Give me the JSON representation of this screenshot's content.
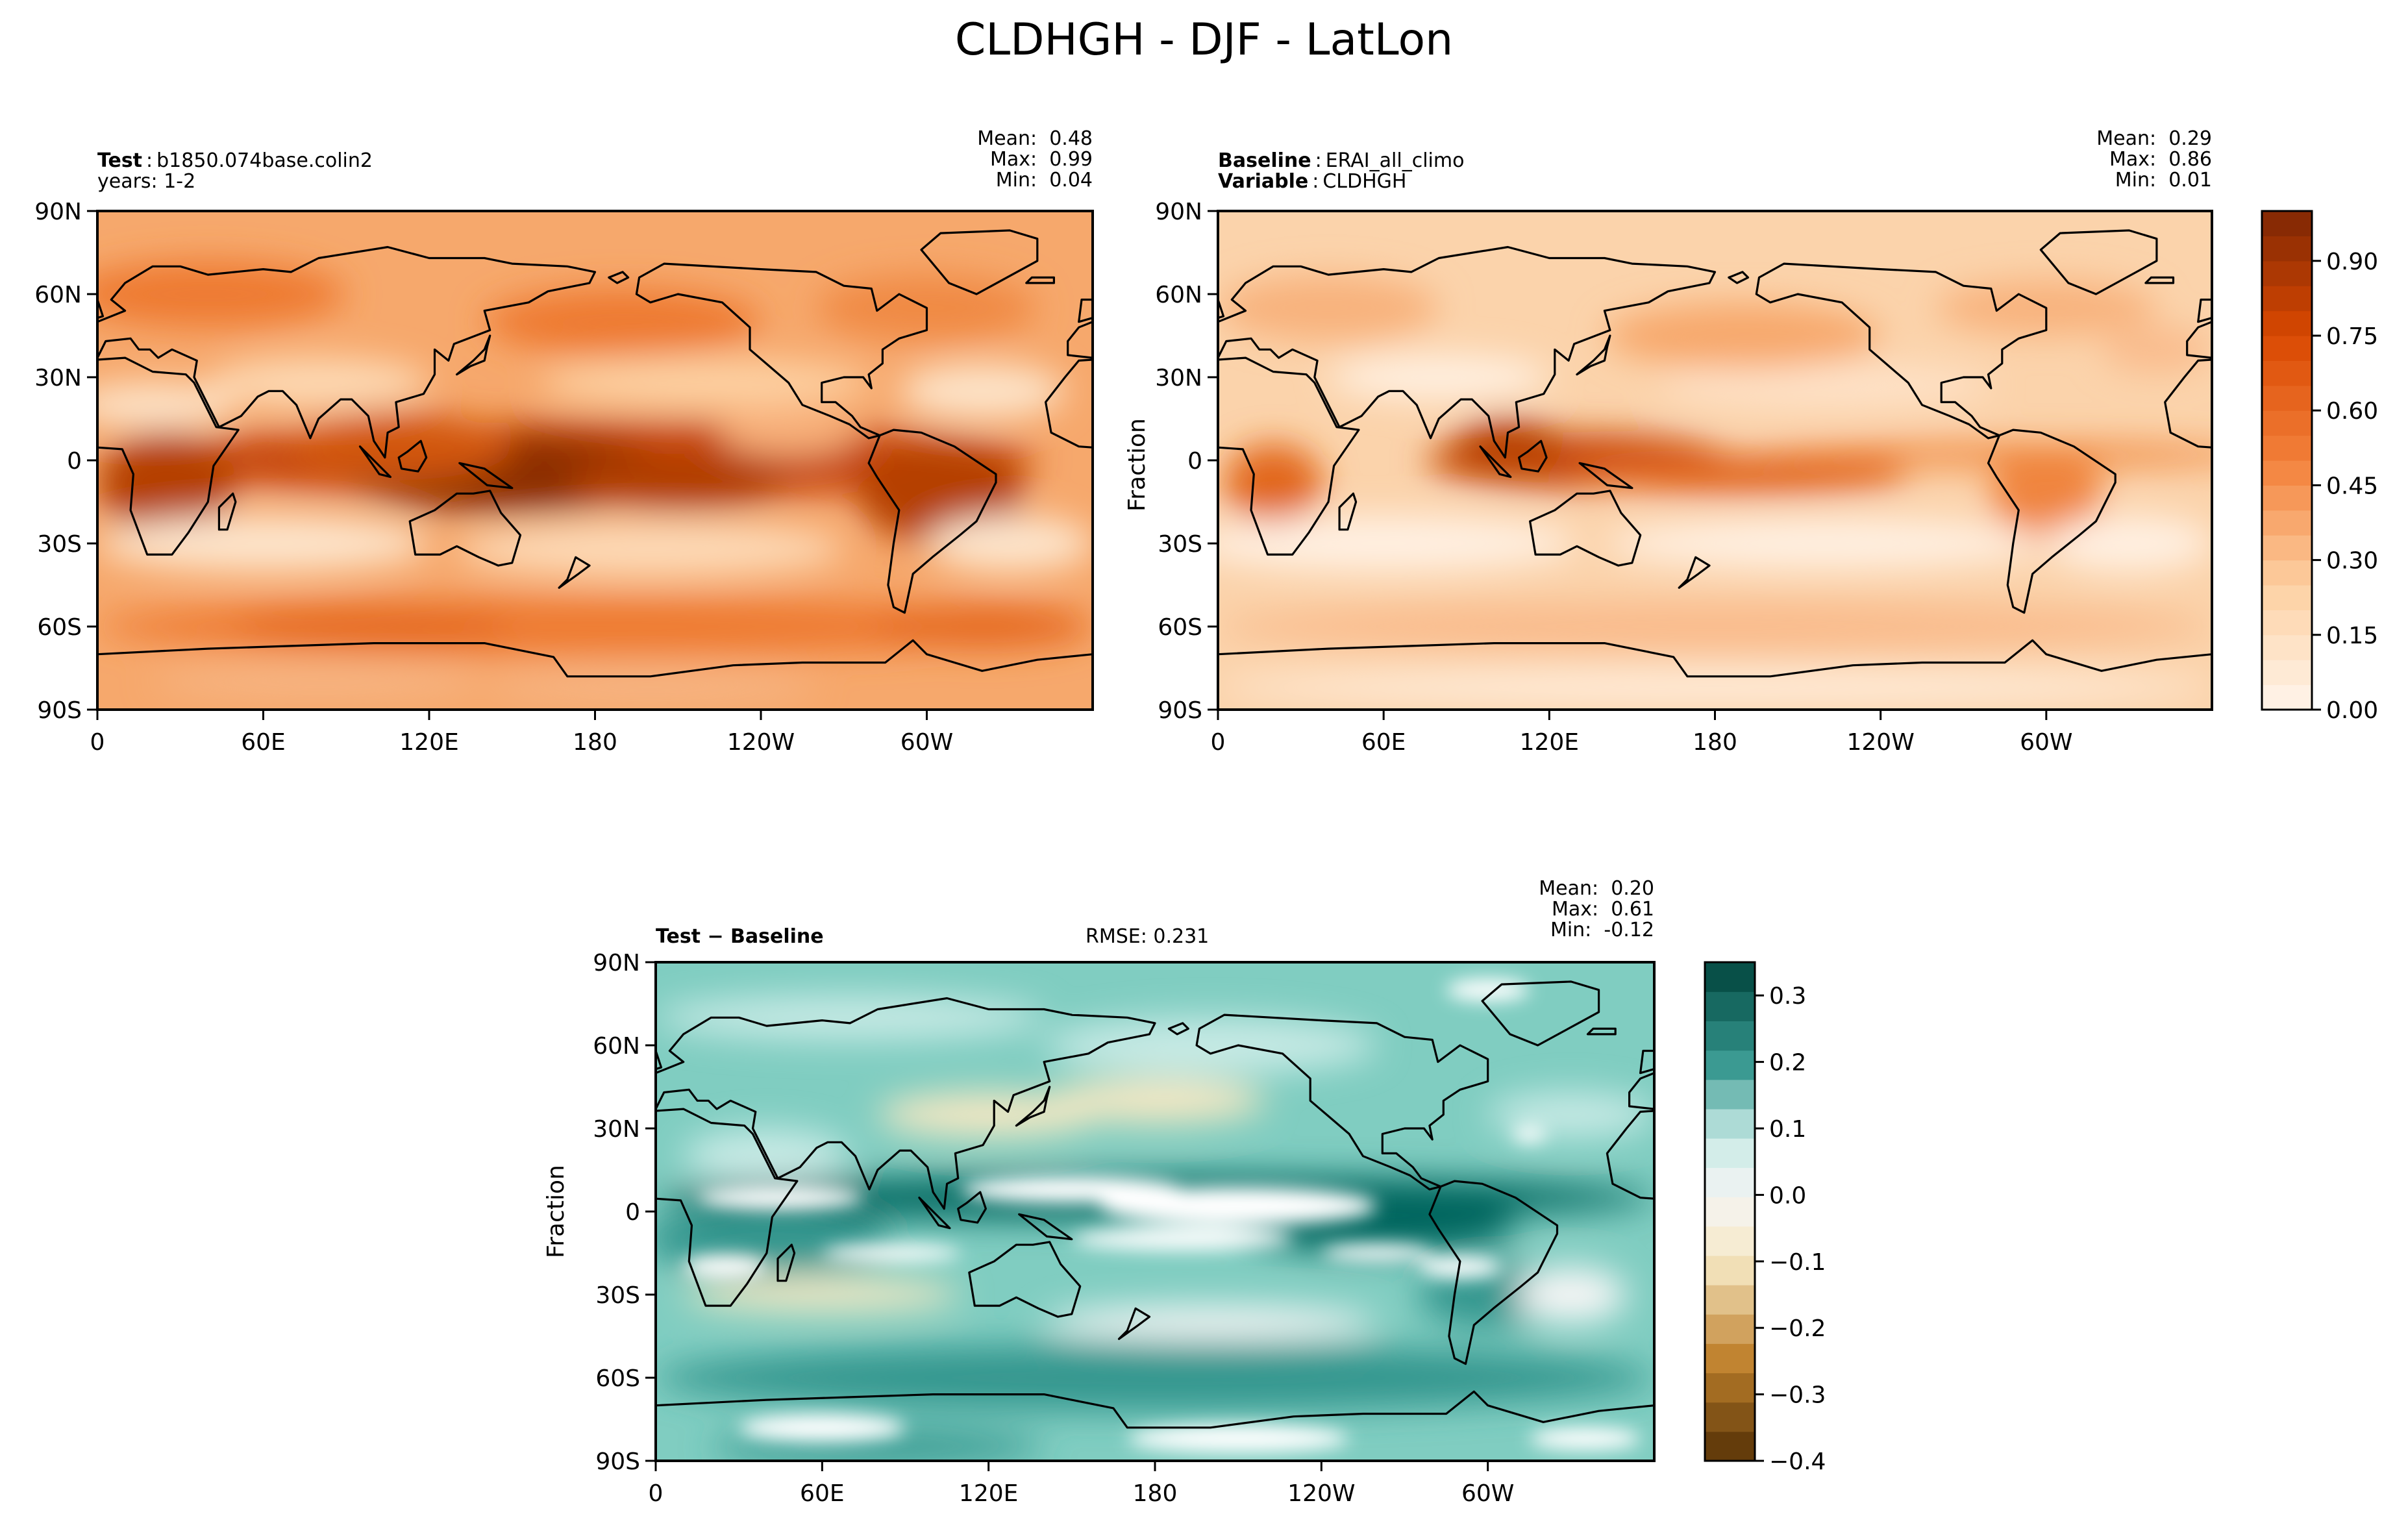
{
  "figure_title": "CLDHGH - DJF - LatLon",
  "panels": {
    "test": {
      "label_bold": "Test",
      "label": "b1850.074base.colin2",
      "line2": "years: 1-2",
      "stats": {
        "mean_label": "Mean:",
        "mean": "0.48",
        "max_label": "Max:",
        "max": "0.99",
        "min_label": "Min:",
        "min": "0.04"
      }
    },
    "baseline": {
      "label_bold": "Baseline",
      "label": "ERAI_all_climo",
      "line2_bold": "Variable",
      "line2": "CLDHGH",
      "ylabel": "Fraction",
      "stats": {
        "mean_label": "Mean:",
        "mean": "0.29",
        "max_label": "Max:",
        "max": "0.86",
        "min_label": "Min:",
        "min": "0.01"
      }
    },
    "diff": {
      "label_bold": "Test − Baseline",
      "rmse": "RMSE: 0.231",
      "ylabel": "Fraction",
      "stats": {
        "mean_label": "Mean:",
        "mean": "0.20",
        "max_label": "Max:",
        "max": "0.61",
        "min_label": "Min:",
        "min": "-0.12"
      }
    }
  },
  "chart_data": [
    {
      "type": "heatmap",
      "title": "Test: b1850.074base.colin2",
      "x_ticks": [
        "0",
        "60E",
        "120E",
        "180",
        "120W",
        "60W"
      ],
      "y_ticks": [
        "90N",
        "60N",
        "30N",
        "0",
        "30S",
        "60S",
        "90S"
      ],
      "xlim": [
        0,
        360
      ],
      "ylim": [
        -90,
        90
      ],
      "colormap": "Oranges",
      "vmin": 0.0,
      "vmax": 1.0,
      "stats": {
        "mean": 0.48,
        "max": 0.99,
        "min": 0.04
      }
    },
    {
      "type": "heatmap",
      "title": "Baseline: ERAI_all_climo",
      "ylabel": "Fraction",
      "x_ticks": [
        "0",
        "60E",
        "120E",
        "180",
        "120W",
        "60W"
      ],
      "y_ticks": [
        "90N",
        "60N",
        "30N",
        "0",
        "30S",
        "60S",
        "90S"
      ],
      "xlim": [
        0,
        360
      ],
      "ylim": [
        -90,
        90
      ],
      "colormap": "Oranges",
      "vmin": 0.0,
      "vmax": 1.0,
      "colorbar_ticks": [
        "0.00",
        "0.15",
        "0.30",
        "0.45",
        "0.60",
        "0.75",
        "0.90"
      ],
      "colorbar_values": [
        0.0,
        0.15,
        0.3,
        0.45,
        0.6,
        0.75,
        0.9
      ],
      "stats": {
        "mean": 0.29,
        "max": 0.86,
        "min": 0.01
      }
    },
    {
      "type": "heatmap",
      "title": "Test − Baseline",
      "ylabel": "Fraction",
      "x_ticks": [
        "0",
        "60E",
        "120E",
        "180",
        "120W",
        "60W"
      ],
      "y_ticks": [
        "90N",
        "60N",
        "30N",
        "0",
        "30S",
        "60S",
        "90S"
      ],
      "xlim": [
        0,
        360
      ],
      "ylim": [
        -90,
        90
      ],
      "colormap": "BrBG",
      "vmin": -0.4,
      "vmax": 0.35,
      "colorbar_ticks": [
        "0.3",
        "0.2",
        "0.1",
        "0.0",
        "−0.1",
        "−0.2",
        "−0.3",
        "−0.4"
      ],
      "colorbar_values": [
        0.3,
        0.2,
        0.1,
        0.0,
        -0.1,
        -0.2,
        -0.3,
        -0.4
      ],
      "rmse": 0.231,
      "stats": {
        "mean": 0.2,
        "max": 0.61,
        "min": -0.12
      }
    }
  ],
  "colors": {
    "oranges_low": "#fff5eb",
    "oranges_mid": "#f3803a",
    "oranges_high": "#7f2704",
    "brbg_pos_high": "#00443c",
    "brbg_zero": "#f5f5f5",
    "brbg_neg_low": "#543005",
    "land_outline": "#000000"
  }
}
